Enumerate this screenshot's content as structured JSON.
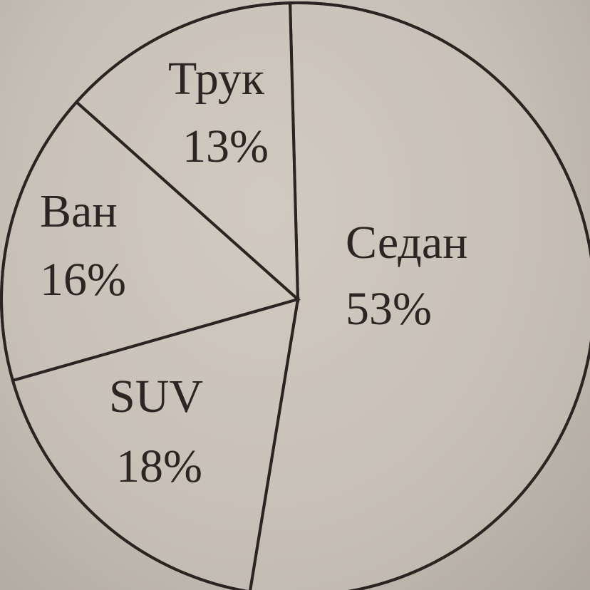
{
  "chart_data": {
    "type": "pie",
    "title": "",
    "slices": [
      {
        "label": "Седан",
        "value": 53,
        "value_label": "53%"
      },
      {
        "label": "SUV",
        "value": 18,
        "value_label": "18%"
      },
      {
        "label": "Ван",
        "value": 16,
        "value_label": "16%"
      },
      {
        "label": "Трук",
        "value": 13,
        "value_label": "13%"
      }
    ],
    "direction": "clockwise from top",
    "fill_color": "#cdc6bc",
    "line_color": "#2a2522",
    "legend": "none"
  }
}
